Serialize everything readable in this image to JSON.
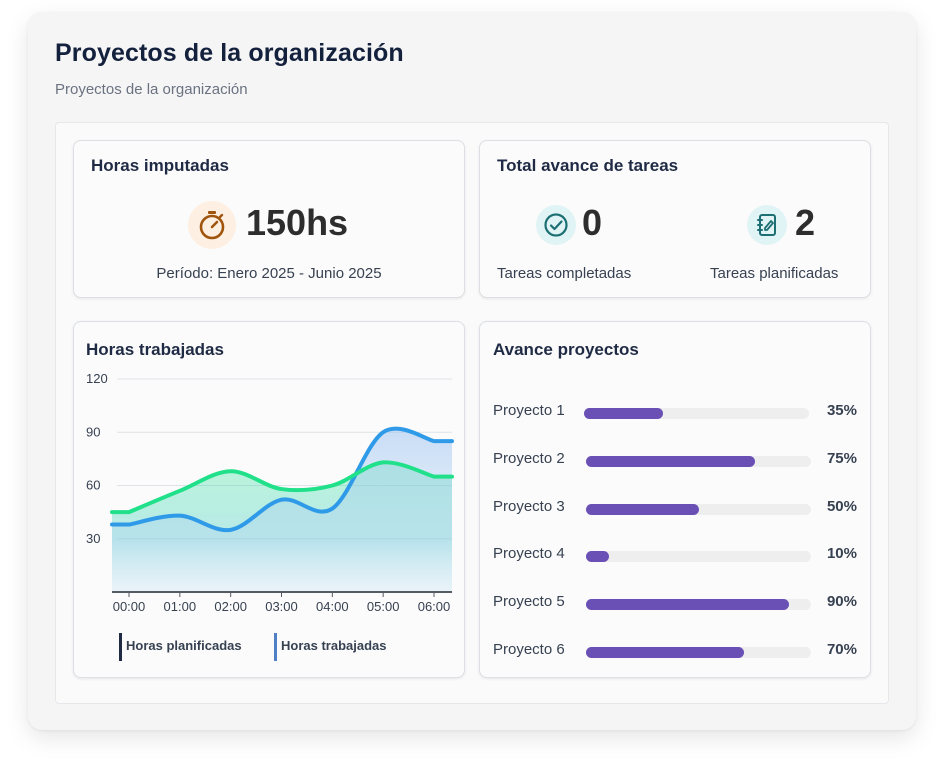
{
  "header": {
    "title": "Proyectos de la organización",
    "subtitle": "Proyectos de la organización"
  },
  "hours_card": {
    "title": "Horas imputadas",
    "value": "150hs",
    "period": "Período: Enero 2025 - Junio 2025",
    "icon": "stopwatch-icon"
  },
  "tasks_card": {
    "title": "Total avance de tareas",
    "completed_value": "0",
    "completed_label": "Tareas completadas",
    "planned_value": "2",
    "planned_label": "Tareas planificadas",
    "completed_icon": "check-circle-icon",
    "planned_icon": "notebook-edit-icon"
  },
  "chart_data": {
    "type": "area",
    "title": "Horas trabajadas",
    "x": [
      "00:00",
      "01:00",
      "02:00",
      "03:00",
      "04:00",
      "05:00",
      "06:00"
    ],
    "ylim": [
      0,
      120
    ],
    "yticks": [
      30,
      60,
      90,
      120
    ],
    "grid": true,
    "legend_position": "bottom",
    "series": [
      {
        "name": "Horas planificadas",
        "color": "#20e08a",
        "values": [
          45,
          57,
          68,
          58,
          60,
          73,
          65
        ]
      },
      {
        "name": "Horas trabajadas",
        "color": "#2f9be8",
        "values": [
          38,
          43,
          35,
          52,
          47,
          90,
          85
        ]
      }
    ]
  },
  "projects_card": {
    "title": "Avance proyectos",
    "bar_color": "#6a4fb5",
    "items": [
      {
        "name": "Proyecto 1",
        "percent": 35,
        "label": "35%"
      },
      {
        "name": "Proyecto 2",
        "percent": 75,
        "label": "75%"
      },
      {
        "name": "Proyecto 3",
        "percent": 50,
        "label": "50%"
      },
      {
        "name": "Proyecto 4",
        "percent": 10,
        "label": "10%"
      },
      {
        "name": "Proyecto 5",
        "percent": 90,
        "label": "90%"
      },
      {
        "name": "Proyecto 6",
        "percent": 70,
        "label": "70%"
      }
    ]
  }
}
